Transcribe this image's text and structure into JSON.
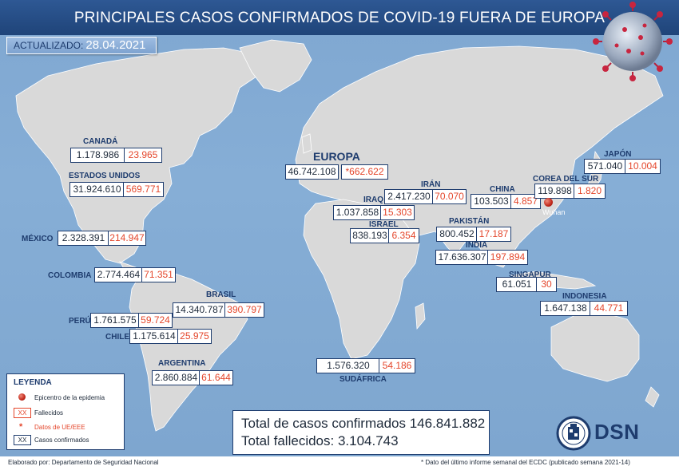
{
  "header": {
    "title": "PRINCIPALES CASOS CONFIRMADOS DE COVID-19 FUERA DE EUROPA",
    "updated_label": "ACTUALIZADO:",
    "updated_date": "28.04.2021"
  },
  "countries": [
    {
      "id": "canada",
      "name": "CANADÁ",
      "cases": "1.178.986",
      "deaths": "23.965"
    },
    {
      "id": "usa",
      "name": "ESTADOS UNIDOS",
      "cases": "31.924.610",
      "deaths": "569.771"
    },
    {
      "id": "mexico",
      "name": "MÉXICO",
      "cases": "2.328.391",
      "deaths": "214.947"
    },
    {
      "id": "colombia",
      "name": "COLOMBIA",
      "cases": "2.774.464",
      "deaths": "71.351"
    },
    {
      "id": "brasil",
      "name": "BRASIL",
      "cases": "14.340.787",
      "deaths": "390.797"
    },
    {
      "id": "peru",
      "name": "PERÚ",
      "cases": "1.761.575",
      "deaths": "59.724"
    },
    {
      "id": "chile",
      "name": "CHILE",
      "cases": "1.175.614",
      "deaths": "25.975"
    },
    {
      "id": "argentina",
      "name": "ARGENTINA",
      "cases": "2.860.884",
      "deaths": "61.644"
    },
    {
      "id": "europa",
      "name": "EUROPA",
      "cases": "46.742.108",
      "deaths": "*662.622"
    },
    {
      "id": "iran",
      "name": "IRÁN",
      "cases": "2.417.230",
      "deaths": "70.070"
    },
    {
      "id": "iraq",
      "name": "IRAQ",
      "cases": "1.037.858",
      "deaths": "15.303"
    },
    {
      "id": "israel",
      "name": "ISRAEL",
      "cases": "838.193",
      "deaths": "6.354"
    },
    {
      "id": "pakistan",
      "name": "PAKISTÁN",
      "cases": "800.452",
      "deaths": "17.187"
    },
    {
      "id": "india",
      "name": "INDIA",
      "cases": "17.636.307",
      "deaths": "197.894"
    },
    {
      "id": "china",
      "name": "CHINA",
      "cases": "103.503",
      "deaths": "4.857"
    },
    {
      "id": "corea",
      "name": "COREA DEL SUR",
      "cases": "119.898",
      "deaths": "1.820"
    },
    {
      "id": "japon",
      "name": "JAPÓN",
      "cases": "571.040",
      "deaths": "10.004"
    },
    {
      "id": "singapur",
      "name": "SINGAPUR",
      "cases": "61.051",
      "deaths": "30"
    },
    {
      "id": "indonesia",
      "name": "INDONESIA",
      "cases": "1.647.138",
      "deaths": "44.771"
    },
    {
      "id": "sudafrica",
      "name": "SUDÁFRICA",
      "cases": "1.576.320",
      "deaths": "54.186"
    }
  ],
  "epicenter": {
    "label": "Wuhan"
  },
  "legend": {
    "title": "LEYENDA",
    "epicenter": "Epicentro de la epidemia",
    "deaths_marker": "XX",
    "deaths": "Fallecidos",
    "eu_marker": "*",
    "eu_data": "Datos de UE/EEE",
    "cases_marker": "XX",
    "cases": "Casos confirmados"
  },
  "totals": {
    "cases": "Total de casos confirmados 146.841.882",
    "deaths": "Total fallecidos: 3.104.743"
  },
  "footer": {
    "credit": "Elaborado por: Departamento de Seguridad Nacional",
    "note": "* Dato del último informe semanal del ECDC (publicado semana 2021-14)"
  },
  "logo": {
    "text": "DSN"
  },
  "colors": {
    "navy": "#1e3c6e",
    "deaths": "#e4462b",
    "ocean": "#86aed6",
    "land": "#d8d8d8"
  }
}
